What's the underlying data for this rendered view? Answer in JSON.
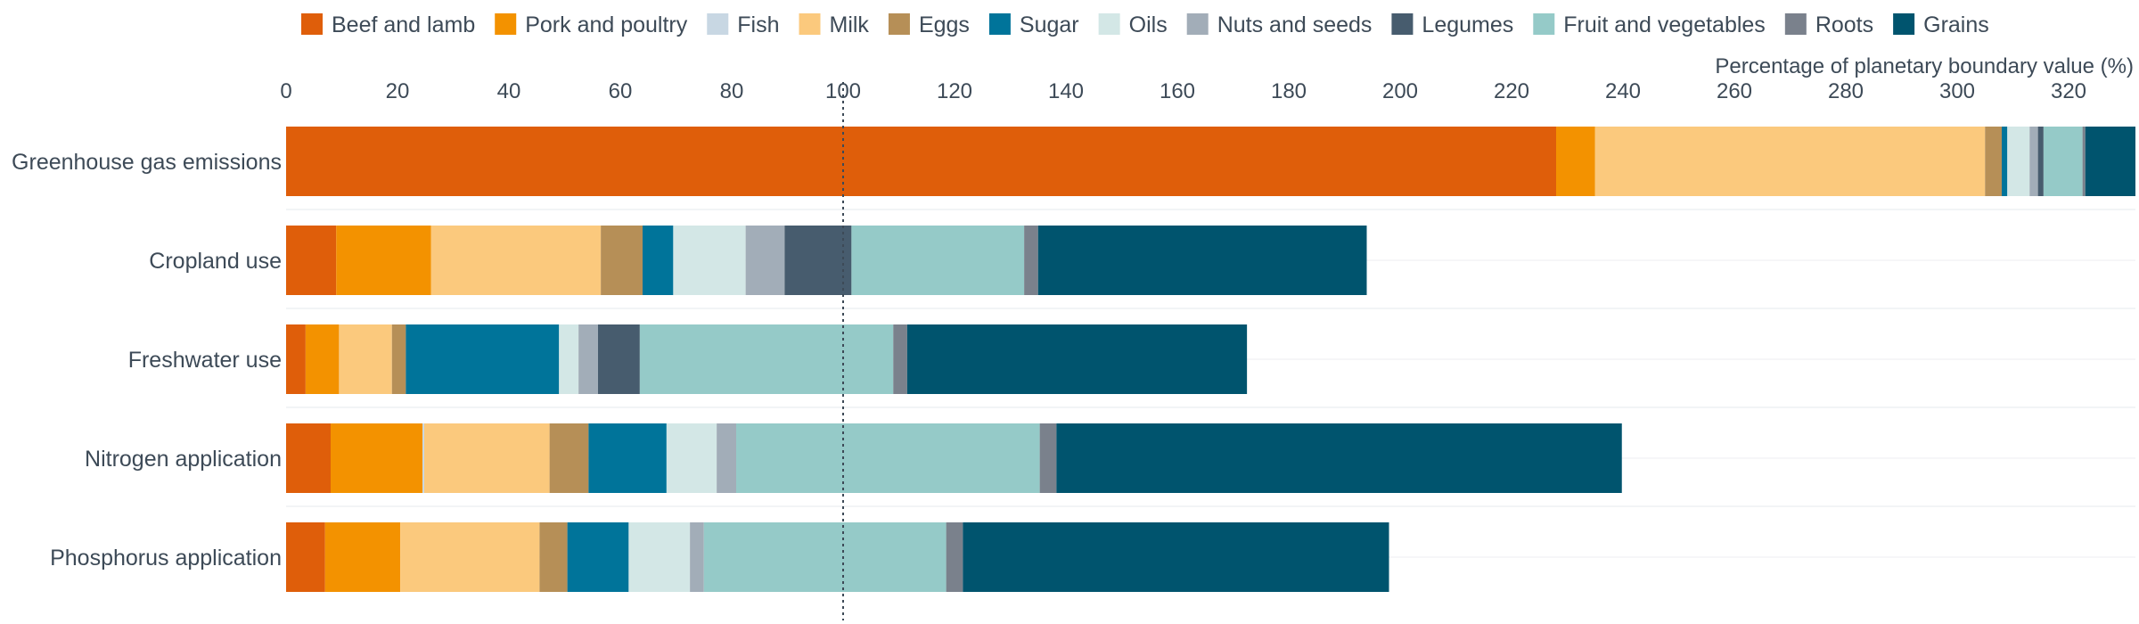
{
  "chart_data": {
    "type": "bar",
    "orientation": "horizontal",
    "stacked": true,
    "xlabel": "Percentage of planetary boundary value (%)",
    "xlim": [
      0,
      332
    ],
    "xticks": [
      0,
      20,
      40,
      60,
      80,
      100,
      120,
      140,
      160,
      180,
      200,
      220,
      240,
      260,
      280,
      300,
      320
    ],
    "reference_line": {
      "value": 100,
      "style": "dotted"
    },
    "legend_position": "top",
    "gridlines": "horizontal, between bars",
    "categories": [
      "Greenhouse gas emissions",
      "Cropland use",
      "Freshwater use",
      "Nitrogen application",
      "Phosphorus application"
    ],
    "series": [
      {
        "name": "Beef and lamb",
        "color": "#df5e0a",
        "values": [
          228,
          9,
          3.5,
          8,
          7
        ]
      },
      {
        "name": "Pork and poultry",
        "color": "#f39200",
        "values": [
          7,
          17,
          6,
          16.5,
          13.5
        ]
      },
      {
        "name": "Fish",
        "color": "#c8d7e3",
        "values": [
          0,
          0,
          0,
          0.3,
          0
        ]
      },
      {
        "name": "Milk",
        "color": "#fbc97d",
        "values": [
          70,
          30.5,
          9.5,
          22.5,
          25
        ]
      },
      {
        "name": "Eggs",
        "color": "#b68f57",
        "values": [
          3,
          7.5,
          2.5,
          7,
          5
        ]
      },
      {
        "name": "Sugar",
        "color": "#00749a",
        "values": [
          1,
          5.5,
          27.5,
          14,
          11
        ]
      },
      {
        "name": "Oils",
        "color": "#d3e7e6",
        "values": [
          4,
          13,
          3.5,
          9,
          11
        ]
      },
      {
        "name": "Nuts and seeds",
        "color": "#a2adb8",
        "values": [
          1.5,
          7,
          3.5,
          3.5,
          2.5
        ]
      },
      {
        "name": "Legumes",
        "color": "#475c6e",
        "values": [
          1,
          12,
          7.5,
          0,
          0
        ]
      },
      {
        "name": "Fruit and vegetables",
        "color": "#95cac8",
        "values": [
          7,
          31,
          45.5,
          54.5,
          43.5
        ]
      },
      {
        "name": "Roots",
        "color": "#7a818c",
        "values": [
          0.5,
          2.5,
          2.5,
          3,
          3
        ]
      },
      {
        "name": "Grains",
        "color": "#00546e",
        "values": [
          9,
          59,
          61,
          101.5,
          76.5
        ]
      }
    ]
  }
}
